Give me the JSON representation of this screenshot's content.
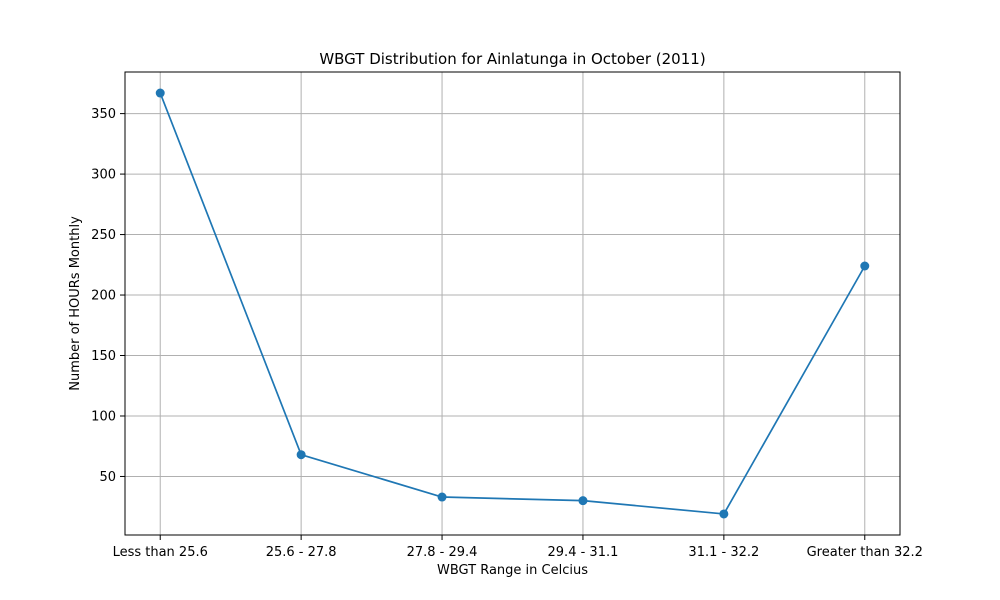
{
  "chart_data": {
    "type": "line",
    "title": "WBGT Distribution for Ainlatunga in October (2011)",
    "xlabel": "WBGT Range in Celcius",
    "ylabel": "Number of HOURs Monthly",
    "categories": [
      "Less than 25.6",
      "25.6 - 27.8",
      "27.8 - 29.4",
      "29.4 - 31.1",
      "31.1 - 32.2",
      "Greater than 32.2"
    ],
    "series": [
      {
        "values": [
          367,
          68,
          33,
          30,
          19,
          224
        ],
        "color": "#1f77b4",
        "marker": "circle"
      }
    ],
    "y_ticks": [
      50,
      100,
      150,
      200,
      250,
      300,
      350
    ],
    "ylim": [
      1.6,
      384.4
    ],
    "grid": true
  }
}
